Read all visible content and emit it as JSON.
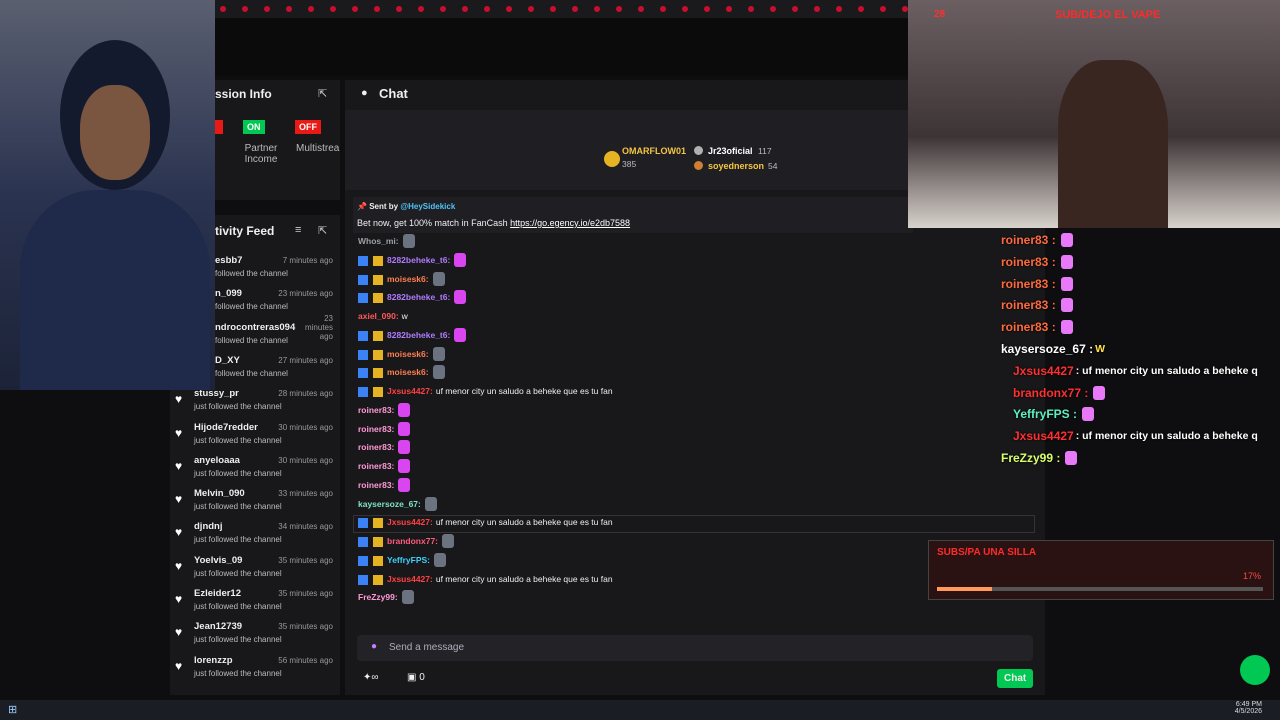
{
  "overlay": {
    "sub_count": "28",
    "goal": "SUB/DEJO EL VAPE"
  },
  "session_info": {
    "title": "ssion Info",
    "on": "ON",
    "off": "OFF",
    "partner": "Partner Income",
    "multistream": "Multistrea"
  },
  "activity_feed": {
    "title": "tivity Feed",
    "items": [
      {
        "name": "esbb7",
        "action": "followed the channel",
        "time": "7 minutes ago"
      },
      {
        "name": "n_099",
        "action": "followed the channel",
        "time": "23 minutes ago"
      },
      {
        "name": "ndrocontreras094",
        "action": "followed the channel",
        "time": "23 minutes ago"
      },
      {
        "name": "D_XY",
        "action": "followed the channel",
        "time": "27 minutes ago"
      },
      {
        "name": "stussy_pr",
        "action": "just followed the channel",
        "time": "28 minutes ago"
      },
      {
        "name": "Hijode7redder",
        "action": "just followed the channel",
        "time": "30 minutes ago"
      },
      {
        "name": "anyeloaaa",
        "action": "just followed the channel",
        "time": "30 minutes ago"
      },
      {
        "name": "Melvin_090",
        "action": "just followed the channel",
        "time": "33 minutes ago"
      },
      {
        "name": "djndnj",
        "action": "just followed the channel",
        "time": "34 minutes ago"
      },
      {
        "name": "Yoelvis_09",
        "action": "just followed the channel",
        "time": "35 minutes ago"
      },
      {
        "name": "Ezleider12",
        "action": "just followed the channel",
        "time": "35 minutes ago"
      },
      {
        "name": "Jean12739",
        "action": "just followed the channel",
        "time": "35 minutes ago"
      },
      {
        "name": "lorenzzp",
        "action": "just followed the channel",
        "time": "56 minutes ago"
      }
    ]
  },
  "chat": {
    "title": "Chat",
    "leaders": [
      {
        "name": "OMARFLOW01",
        "score": "385"
      },
      {
        "name": "Jr23oficial",
        "score": "117"
      },
      {
        "name": "soyednerson",
        "score": "54"
      }
    ],
    "banner": {
      "sent_by": "Sent by",
      "sender": "@HeySidekick",
      "text": "Bet now, get 100% match in FanCash",
      "link": "https://go.egency.io/e2db7588"
    },
    "messages": [
      {
        "name": "Whos_mi:",
        "color": "#9aa0a6"
      },
      {
        "name": "8282beheke_t6:",
        "color": "#b07cff"
      },
      {
        "name": "moisesk6:",
        "color": "#ff7f50"
      },
      {
        "name": "8282beheke_t6:",
        "color": "#b07cff"
      },
      {
        "name": "axiel_090:",
        "text": "w",
        "color": "#ff5a5a"
      },
      {
        "name": "8282beheke_t6:",
        "color": "#b07cff"
      },
      {
        "name": "moisesk6:",
        "color": "#ff7f50"
      },
      {
        "name": "moisesk6:",
        "color": "#ff7f50"
      },
      {
        "name": "Jxsus4427:",
        "text": "uf menor city un saludo a beheke que es tu fan",
        "color": "#ff4040"
      },
      {
        "name": "roiner83:",
        "color": "#ff9ad5"
      },
      {
        "name": "roiner83:",
        "color": "#ff9ad5"
      },
      {
        "name": "roiner83:",
        "color": "#ff9ad5"
      },
      {
        "name": "roiner83:",
        "color": "#ff9ad5"
      },
      {
        "name": "roiner83:",
        "color": "#ff9ad5"
      },
      {
        "name": "kaysersoze_67:",
        "color": "#7fe3c4"
      },
      {
        "name": "Jxsus4427:",
        "text": "uf menor city un saludo a beheke que es tu fan",
        "color": "#ff4040"
      },
      {
        "name": "brandonx77:",
        "color": "#ff5a7a"
      },
      {
        "name": "YeffryFPS:",
        "color": "#3fd0ff"
      },
      {
        "name": "Jxsus4427:",
        "text": "uf menor city un saludo a beheke que es tu fan",
        "color": "#ff4040"
      },
      {
        "name": "FreZzy99:",
        "color": "#ff9ad5"
      }
    ],
    "input": "Send a message",
    "points": "0",
    "send": "Chat"
  },
  "overlay_chat": [
    {
      "name": "roiner83 :",
      "color": "#ff6a3d"
    },
    {
      "name": "roiner83 :",
      "color": "#ff6a3d"
    },
    {
      "name": "roiner83 :",
      "color": "#ff6a3d"
    },
    {
      "name": "roiner83 :",
      "color": "#ff6a3d"
    },
    {
      "name": "roiner83 :",
      "color": "#ff6a3d"
    },
    {
      "name": "kaysersoze_67 :",
      "text": "W",
      "color": "#ffffff"
    },
    {
      "name": "Jxsus4427",
      "text": ": uf menor city un saludo a beheke q",
      "color": "#ff3030"
    },
    {
      "name": "brandonx77 :",
      "color": "#ff3030"
    },
    {
      "name": "YeffryFPS :",
      "color": "#5ff0c0"
    },
    {
      "name": "Jxsus4427",
      "text": ": uf menor city un saludo a beheke q",
      "color": "#ff3030"
    },
    {
      "name": "FreZzy99 :",
      "color": "#d8ff6a"
    }
  ],
  "goal_widget": {
    "title": "SUBS/PA UNA SILLA",
    "percent": "17%"
  },
  "taskbar": {
    "time": "6:49 PM",
    "date": "4/5/2026"
  }
}
